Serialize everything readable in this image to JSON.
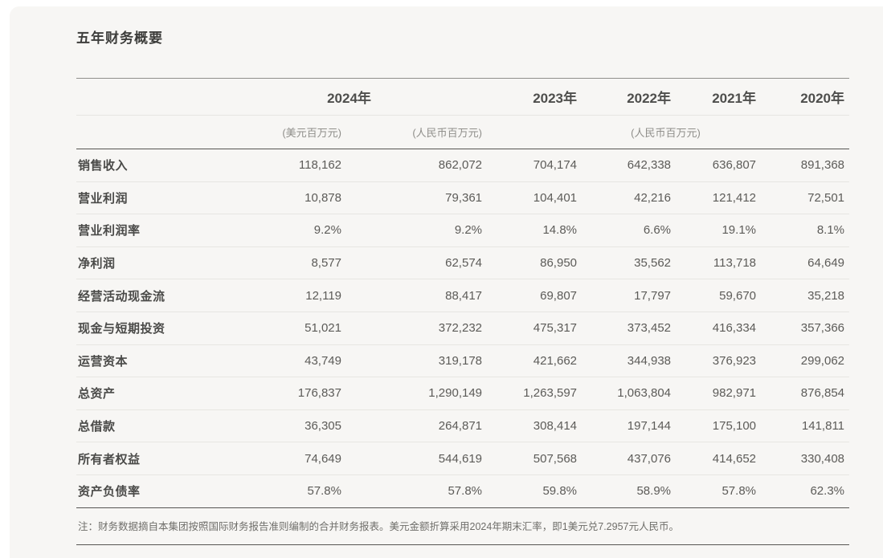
{
  "page": {
    "title": "五年财务概要"
  },
  "table": {
    "year_headers": {
      "y2024": "2024年",
      "y2023": "2023年",
      "y2022": "2022年",
      "y2021": "2021年",
      "y2020": "2020年"
    },
    "unit_headers": {
      "usd_2024": "(美元百万元)",
      "rmb_2024": "(人民币百万元)",
      "rmb_prior_years": "(人民币百万元)"
    },
    "rows": [
      {
        "label": "销售收入",
        "values": [
          "118,162",
          "862,072",
          "704,174",
          "642,338",
          "636,807",
          "891,368"
        ]
      },
      {
        "label": "营业利润",
        "values": [
          "10,878",
          "79,361",
          "104,401",
          "42,216",
          "121,412",
          "72,501"
        ]
      },
      {
        "label": "营业利润率",
        "values": [
          "9.2%",
          "9.2%",
          "14.8%",
          "6.6%",
          "19.1%",
          "8.1%"
        ]
      },
      {
        "label": "净利润",
        "values": [
          "8,577",
          "62,574",
          "86,950",
          "35,562",
          "113,718",
          "64,649"
        ]
      },
      {
        "label": "经营活动现金流",
        "values": [
          "12,119",
          "88,417",
          "69,807",
          "17,797",
          "59,670",
          "35,218"
        ]
      },
      {
        "label": "现金与短期投资",
        "values": [
          "51,021",
          "372,232",
          "475,317",
          "373,452",
          "416,334",
          "357,366"
        ]
      },
      {
        "label": "运营资本",
        "values": [
          "43,749",
          "319,178",
          "421,662",
          "344,938",
          "376,923",
          "299,062"
        ]
      },
      {
        "label": "总资产",
        "values": [
          "176,837",
          "1,290,149",
          "1,263,597",
          "1,063,804",
          "982,971",
          "876,854"
        ]
      },
      {
        "label": "总借款",
        "values": [
          "36,305",
          "264,871",
          "308,414",
          "197,144",
          "175,100",
          "141,811"
        ]
      },
      {
        "label": "所有者权益",
        "values": [
          "74,649",
          "544,619",
          "507,568",
          "437,076",
          "414,652",
          "330,408"
        ]
      },
      {
        "label": "资产负债率",
        "values": [
          "57.8%",
          "57.8%",
          "59.8%",
          "58.9%",
          "57.8%",
          "62.3%"
        ]
      }
    ],
    "note": "注：财务数据摘自本集团按照国际财务报告准则编制的合并财务报表。美元金额折算采用2024年期末汇率，即1美元兑7.2957元人民币。"
  },
  "colors": {
    "page_background": "#ffffff",
    "panel_background": "#f7f6f4",
    "title_text": "#3d3d3b",
    "header_text": "#4e4e4c",
    "unit_text": "#8f8e8a",
    "label_text": "#4a4a48",
    "value_text": "#5c5b58",
    "note_text": "#6f6e6a",
    "line_strong": "#565552",
    "line_faint": "#e7e6e2"
  }
}
